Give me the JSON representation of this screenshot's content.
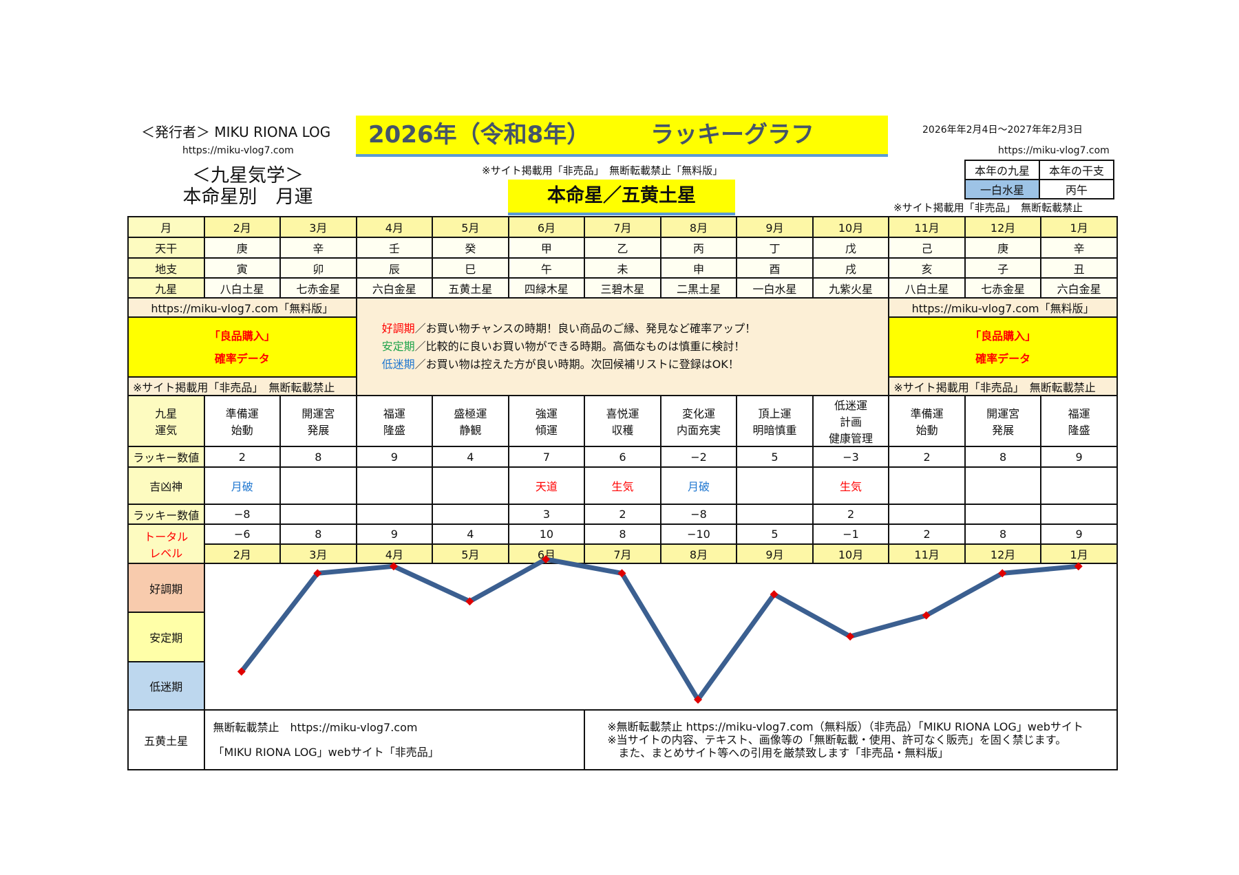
{
  "header": {
    "publisher": "＜発行者＞ MIKU RIONA LOG",
    "url": "https://miku-vlog7.com",
    "subtitle_line1": "＜九星気学＞",
    "subtitle_line2": "本命星別　月運",
    "title_year": "2026年（令和8年）",
    "title_main": "ラッキーグラフ",
    "notice": "※サイト掲載用「非売品」　無断転載禁止「無料版」",
    "honmei": "本命星／五黄土星",
    "period": "2026年年2月4日～2027年年2月3日",
    "url_right": "https://miku-vlog7.com",
    "year_table": {
      "h1": "本年の九星",
      "h2": "本年の干支",
      "v1": "一白水星",
      "v2": "丙午"
    },
    "notice_right": "※サイト掲載用「非売品」　無断転載禁止"
  },
  "table": {
    "row_labels": {
      "month": "月",
      "tenkan": "天干",
      "chishi": "地支",
      "kyusei": "九星",
      "unki": "九星\n運気",
      "lucky": "ラッキー数値",
      "kikkyo": "吉凶神",
      "lucky2": "ラッキー数値",
      "total": "トータル\nレベル"
    },
    "months": [
      "2月",
      "3月",
      "4月",
      "5月",
      "6月",
      "7月",
      "8月",
      "9月",
      "10月",
      "11月",
      "12月",
      "1月"
    ],
    "tenkan": [
      "庚",
      "辛",
      "壬",
      "癸",
      "甲",
      "乙",
      "丙",
      "丁",
      "戊",
      "己",
      "庚",
      "辛"
    ],
    "chishi": [
      "寅",
      "卯",
      "辰",
      "巳",
      "午",
      "未",
      "申",
      "酉",
      "戌",
      "亥",
      "子",
      "丑"
    ],
    "kyusei": [
      "八白土星",
      "七赤金星",
      "六白金星",
      "五黄土星",
      "四緑木星",
      "三碧木星",
      "二黒土星",
      "一白水星",
      "九紫火星",
      "八白土星",
      "七赤金星",
      "六白金星"
    ],
    "unki": [
      "準備運\n始動",
      "開運宮\n発展",
      "福運\n隆盛",
      "盛極運\n静観",
      "強運\n傾運",
      "喜悦運\n収穫",
      "変化運\n内面充実",
      "頂上運\n明暗慎重",
      "低迷運\n計画\n健康管理",
      "準備運\n始動",
      "開運宮\n発展",
      "福運\n隆盛"
    ],
    "lucky": [
      "2",
      "8",
      "9",
      "4",
      "7",
      "6",
      "−2",
      "5",
      "−3",
      "2",
      "8",
      "9"
    ],
    "kikkyo": [
      "月破",
      "",
      "",
      "",
      "天道",
      "生気",
      "月破",
      "",
      "生気",
      "",
      "",
      ""
    ],
    "kikkyo_color": [
      "blue",
      "",
      "",
      "",
      "red",
      "red",
      "blue",
      "",
      "red",
      "",
      "",
      ""
    ],
    "lucky2": [
      "−8",
      "",
      "",
      "",
      "3",
      "2",
      "−8",
      "",
      "2",
      "",
      "",
      ""
    ],
    "total": [
      "−6",
      "8",
      "9",
      "4",
      "10",
      "8",
      "−10",
      "5",
      "−1",
      "2",
      "8",
      "9"
    ]
  },
  "middle": {
    "url_free": "https://miku-vlog7.com「無料版」",
    "promo_line1": "「良品購入」",
    "promo_line2": "確率データ",
    "notice": "※サイト掲載用「非売品」　無断転載禁止",
    "legend": [
      {
        "term": "好調期",
        "text": "／お買い物チャンスの時期！良い商品のご縁、発見など確率アップ！",
        "color": "#ff0000"
      },
      {
        "term": "安定期",
        "text": "／比較的に良いお買い物ができる時期。高価なものは慎重に検討！",
        "color": "#1fa34a"
      },
      {
        "term": "低迷期",
        "text": "／お買い物は控えた方が良い時期。次回候補リストに登録はOK！",
        "color": "#1f77d0"
      }
    ]
  },
  "chart_data": {
    "type": "line",
    "categories": [
      "2月",
      "3月",
      "4月",
      "5月",
      "6月",
      "7月",
      "8月",
      "9月",
      "10月",
      "11月",
      "12月",
      "1月"
    ],
    "values": [
      -6,
      8,
      9,
      4,
      10,
      8,
      -10,
      5,
      -1,
      2,
      8,
      9
    ],
    "ylim": [
      -10,
      10
    ],
    "bands": [
      "好調期",
      "安定期",
      "低迷期"
    ],
    "band_colors": [
      "#f8cbad",
      "#ffffa8",
      "#bdd7ee"
    ],
    "line_color": "#3b5f90",
    "marker_color": "#e00000",
    "grid": false
  },
  "footer": {
    "label": "五黄土星",
    "left_line1": "無断転載禁止　https://miku-vlog7.com",
    "left_line2": "「MIKU RIONA LOG」webサイト「非売品」",
    "right_line1": "※無断転載禁止 https://miku-vlog7.com（無料版）（非売品）「MIKU RIONA LOG」webサイト",
    "right_line2": "※当サイトの内容、テキスト、画像等の「無断転載・使用、許可なく販売」を固く禁じます。",
    "right_line3": "　また、まとめサイト等への引用を厳禁致します「非売品・無料版」"
  }
}
